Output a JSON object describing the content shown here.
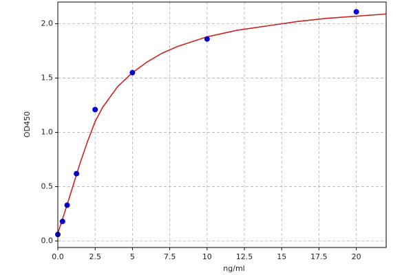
{
  "chart_data": {
    "type": "scatter",
    "x_label": "ng/ml",
    "y_label": "OD450",
    "xlim": [
      0,
      22
    ],
    "ylim": [
      -0.06,
      2.2
    ],
    "xticks": [
      {
        "value": 0,
        "label": "0.0"
      },
      2.5,
      5,
      7.5,
      10,
      12.5,
      15,
      17.5,
      20
    ],
    "yticks": [
      {
        "value": 0,
        "label": "0.0"
      },
      0.5,
      {
        "value": 1,
        "label": "1.0"
      },
      1.5,
      {
        "value": 2,
        "label": "2.0"
      }
    ],
    "grid": true,
    "series": [
      {
        "type": "line",
        "color": "#cc2222",
        "x": [
          0,
          0.5,
          1,
          1.5,
          2,
          2.5,
          3,
          4,
          5,
          6,
          7,
          8,
          10,
          12,
          14,
          16,
          18,
          20,
          22
        ],
        "values": [
          0.07,
          0.28,
          0.5,
          0.72,
          0.92,
          1.1,
          1.23,
          1.42,
          1.55,
          1.65,
          1.73,
          1.79,
          1.88,
          1.94,
          1.98,
          2.02,
          2.05,
          2.07,
          2.09
        ]
      },
      {
        "type": "scatter",
        "color": "#0000cc",
        "x": [
          0,
          0.3125,
          0.625,
          1.25,
          2.5,
          5,
          10,
          20
        ],
        "values": [
          0.06,
          0.18,
          0.33,
          0.62,
          1.21,
          1.55,
          1.86,
          2.11
        ]
      }
    ]
  }
}
